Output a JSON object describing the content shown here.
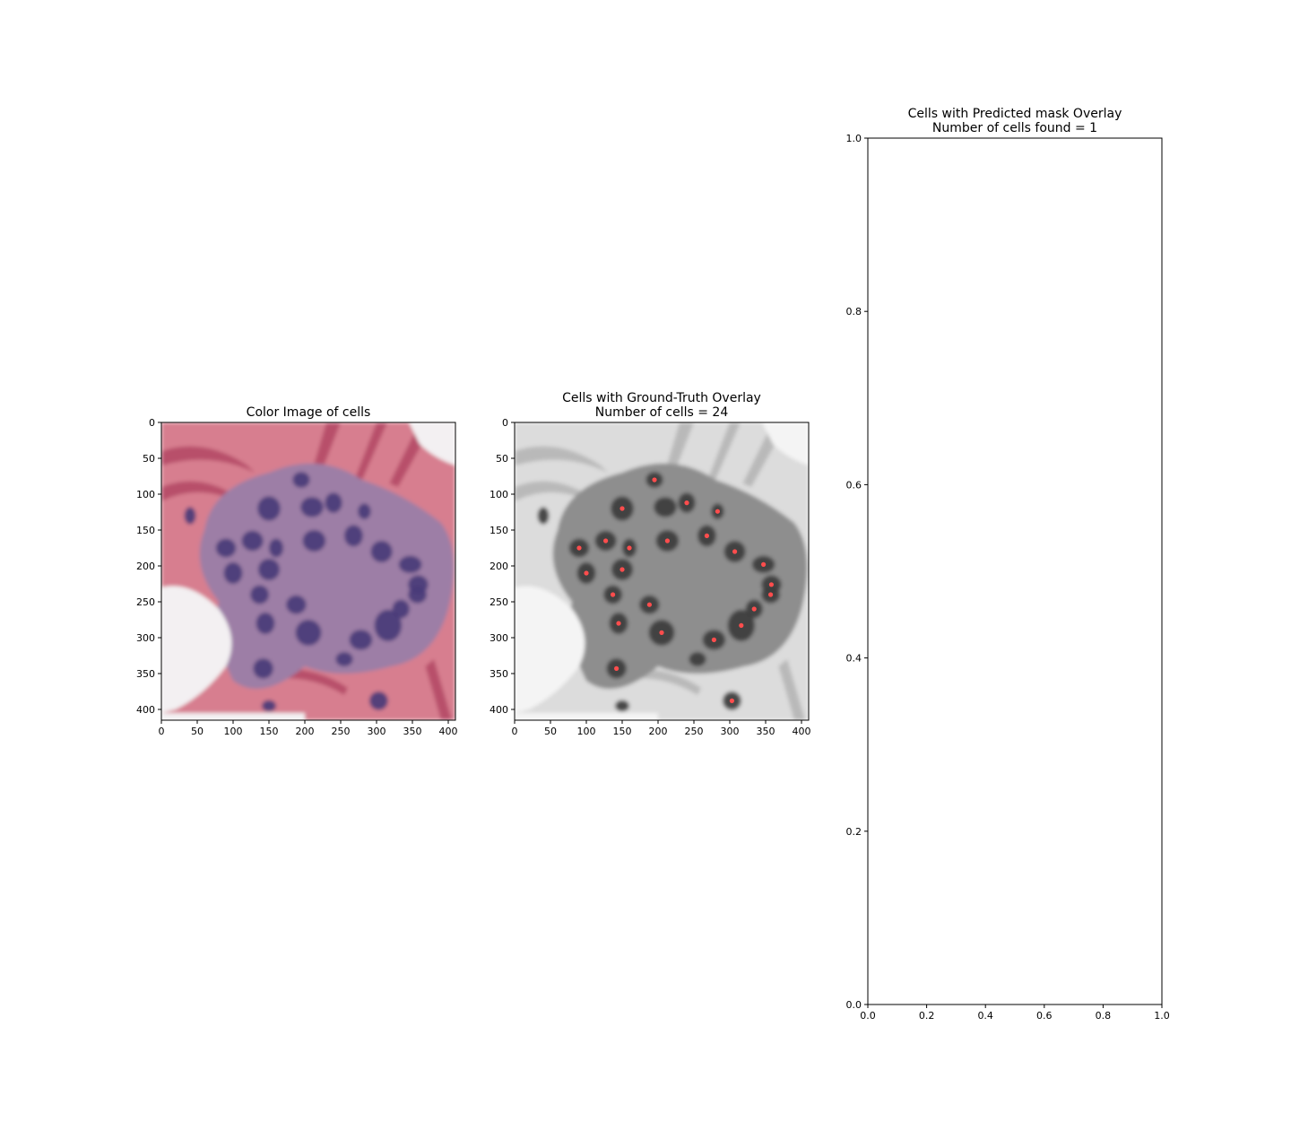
{
  "chart_data": [
    {
      "type": "image",
      "title": "Color Image of cells",
      "subtitle": "",
      "xlim": [
        0,
        410
      ],
      "ylim": [
        415,
        0
      ],
      "xticks": [
        0,
        50,
        100,
        150,
        200,
        250,
        300,
        350,
        400
      ],
      "yticks": [
        0,
        50,
        100,
        150,
        200,
        250,
        300,
        350,
        400
      ],
      "colors": {
        "background": "#d77e8f",
        "stroma_dark": "#b8506a",
        "cytoplasm": "#9d7ea6",
        "nucleus": "#4a3a78",
        "lumen": "#f3f0f2"
      }
    },
    {
      "type": "image",
      "title": "Cells with Ground-Truth Overlay",
      "subtitle": "Number of cells = 24",
      "xlim": [
        0,
        410
      ],
      "ylim": [
        415,
        0
      ],
      "xticks": [
        0,
        50,
        100,
        150,
        200,
        250,
        300,
        350,
        400
      ],
      "yticks": [
        0,
        50,
        100,
        150,
        200,
        250,
        300,
        350,
        400
      ],
      "marker_color": "#ff4d4d",
      "cells": [
        {
          "x": 195,
          "y": 80
        },
        {
          "x": 150,
          "y": 120
        },
        {
          "x": 240,
          "y": 112
        },
        {
          "x": 283,
          "y": 124
        },
        {
          "x": 90,
          "y": 175
        },
        {
          "x": 127,
          "y": 165
        },
        {
          "x": 160,
          "y": 175
        },
        {
          "x": 213,
          "y": 165
        },
        {
          "x": 268,
          "y": 158
        },
        {
          "x": 307,
          "y": 180
        },
        {
          "x": 100,
          "y": 210
        },
        {
          "x": 150,
          "y": 205
        },
        {
          "x": 347,
          "y": 198
        },
        {
          "x": 358,
          "y": 226
        },
        {
          "x": 137,
          "y": 240
        },
        {
          "x": 357,
          "y": 240
        },
        {
          "x": 188,
          "y": 254
        },
        {
          "x": 334,
          "y": 260
        },
        {
          "x": 145,
          "y": 280
        },
        {
          "x": 316,
          "y": 283
        },
        {
          "x": 205,
          "y": 293
        },
        {
          "x": 278,
          "y": 303
        },
        {
          "x": 142,
          "y": 343
        },
        {
          "x": 303,
          "y": 388
        }
      ]
    },
    {
      "type": "image",
      "title": "Cells with Predicted mask Overlay",
      "subtitle": "Number of cells found = 1",
      "xlim": [
        0.0,
        1.0
      ],
      "ylim": [
        0.0,
        1.0
      ],
      "xticks": [
        "0.0",
        "0.2",
        "0.4",
        "0.6",
        "0.8",
        "1.0"
      ],
      "yticks": [
        "0.0",
        "0.2",
        "0.4",
        "0.6",
        "0.8",
        "1.0"
      ]
    }
  ]
}
